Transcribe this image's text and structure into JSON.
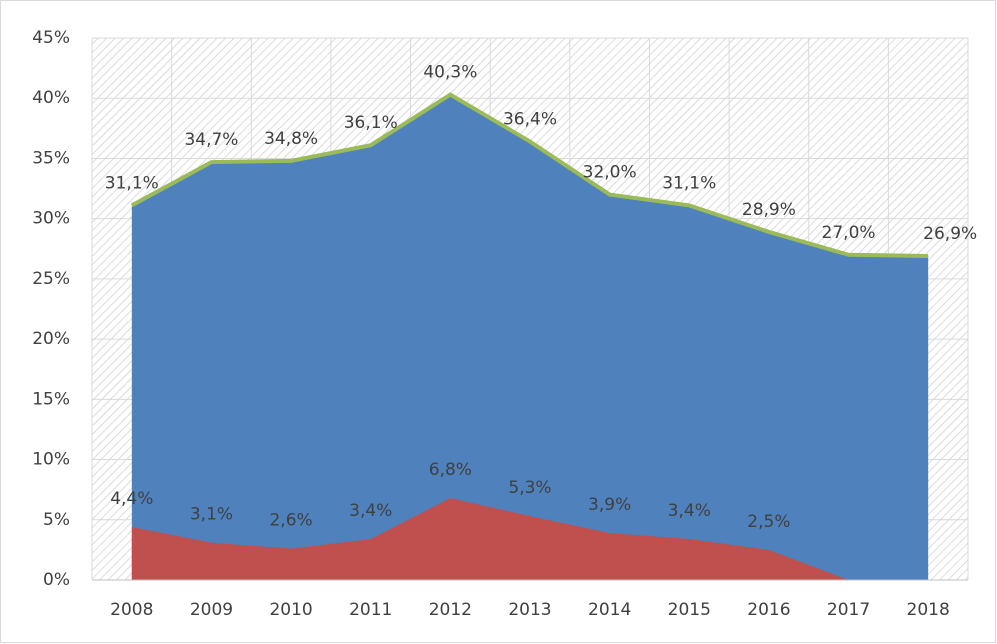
{
  "chart_data": {
    "type": "area",
    "categories": [
      "2008",
      "2009",
      "2010",
      "2011",
      "2012",
      "2013",
      "2014",
      "2015",
      "2016",
      "2017",
      "2018"
    ],
    "series": [
      {
        "color": "#4f81bd",
        "line_color": "#9bbb59",
        "values": [
          31.1,
          34.7,
          34.8,
          36.1,
          40.3,
          36.4,
          32.0,
          31.1,
          28.9,
          27.0,
          26.9
        ],
        "value_labels": [
          "31,1%",
          "34,7%",
          "34,8%",
          "36,1%",
          "40,3%",
          "36,4%",
          "32,0%",
          "31,1%",
          "28,9%",
          "27,0%",
          "26,9%"
        ]
      },
      {
        "color": "#c0504d",
        "values": [
          4.4,
          3.1,
          2.6,
          3.4,
          6.8,
          5.3,
          3.9,
          3.4,
          2.5,
          0,
          0
        ],
        "value_labels": [
          "4,4%",
          "3,1%",
          "2,6%",
          "3,4%",
          "6,8%",
          "5,3%",
          "3,9%",
          "3,4%",
          "2,5%",
          null,
          null
        ]
      }
    ],
    "ylim": [
      0,
      45
    ],
    "yticks": [
      {
        "value": 0,
        "label": "0%"
      },
      {
        "value": 5,
        "label": "5%"
      },
      {
        "value": 10,
        "label": "10%"
      },
      {
        "value": 15,
        "label": "15%"
      },
      {
        "value": 20,
        "label": "20%"
      },
      {
        "value": 25,
        "label": "25%"
      },
      {
        "value": 30,
        "label": "30%"
      },
      {
        "value": 35,
        "label": "35%"
      },
      {
        "value": 40,
        "label": "40%"
      },
      {
        "value": 45,
        "label": "45%"
      }
    ],
    "grid": true
  }
}
